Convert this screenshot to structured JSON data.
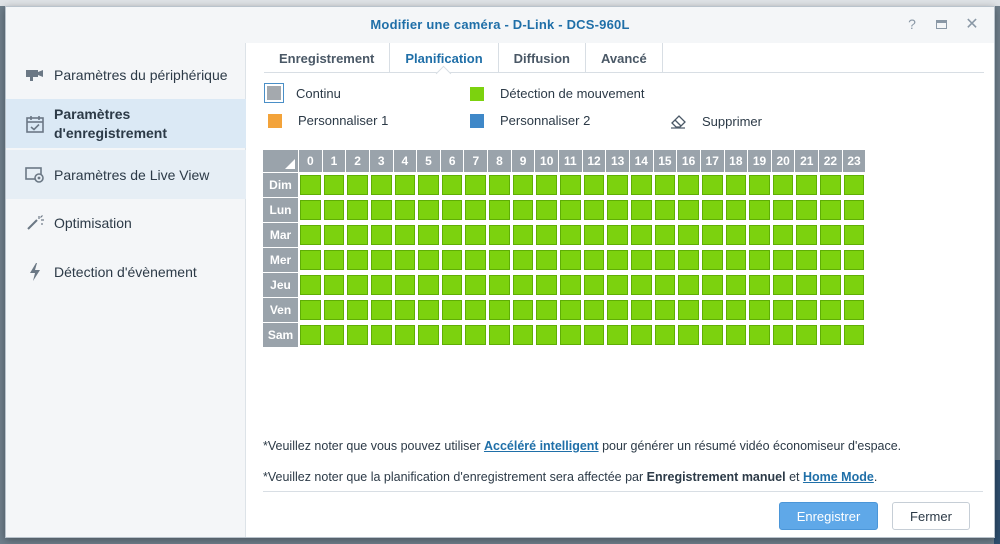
{
  "window": {
    "title": "Modifier une caméra - D-Link - DCS-960L",
    "help_glyph": "?",
    "close_glyph": "✕"
  },
  "sidebar": {
    "items": [
      {
        "label": "Paramètres du périphérique",
        "icon": "camera-icon",
        "state": "normal"
      },
      {
        "label": "Paramètres\nd'enregistrement",
        "icon": "calendar-icon",
        "state": "active"
      },
      {
        "label": "Paramètres de Live View",
        "icon": "live-view-icon",
        "state": "hover"
      },
      {
        "label": "Optimisation",
        "icon": "magic-wand-icon",
        "state": "normal"
      },
      {
        "label": "Détection d'évènement",
        "icon": "lightning-icon",
        "state": "normal"
      }
    ]
  },
  "tabs": [
    {
      "label": "Enregistrement",
      "active": false
    },
    {
      "label": "Planification",
      "active": true
    },
    {
      "label": "Diffusion",
      "active": false
    },
    {
      "label": "Avancé",
      "active": false
    }
  ],
  "legend": {
    "continu": {
      "label": "Continu",
      "color": "#a4a9ae"
    },
    "motion": {
      "label": "Détection de mouvement",
      "color": "#7cd20e"
    },
    "custom1": {
      "label": "Personnaliser 1",
      "color": "#f3a33a"
    },
    "custom2": {
      "label": "Personnaliser 2",
      "color": "#3f88c8"
    },
    "delete": {
      "label": "Supprimer",
      "icon": "eraser-icon"
    }
  },
  "schedule": {
    "hours": [
      "0",
      "1",
      "2",
      "3",
      "4",
      "5",
      "6",
      "7",
      "8",
      "9",
      "10",
      "11",
      "12",
      "13",
      "14",
      "15",
      "16",
      "17",
      "18",
      "19",
      "20",
      "21",
      "22",
      "23"
    ],
    "days": [
      "Dim",
      "Lun",
      "Mar",
      "Mer",
      "Jeu",
      "Ven",
      "Sam"
    ],
    "fill_mode": "Détection de mouvement",
    "fill_color": "#7cd20e"
  },
  "notes": {
    "note1_prefix": "*Veuillez noter que vous pouvez utiliser ",
    "note1_link": "Accéléré intelligent",
    "note1_suffix": " pour générer un résumé vidéo économiseur d'espace.",
    "note2_prefix": "*Veuillez noter que la planification d'enregistrement sera affectée par ",
    "note2_bold": "Enregistrement manuel",
    "note2_mid": " et ",
    "note2_link": "Home Mode",
    "note2_suffix": "."
  },
  "footer": {
    "save_label": "Enregistrer",
    "close_label": "Fermer"
  }
}
